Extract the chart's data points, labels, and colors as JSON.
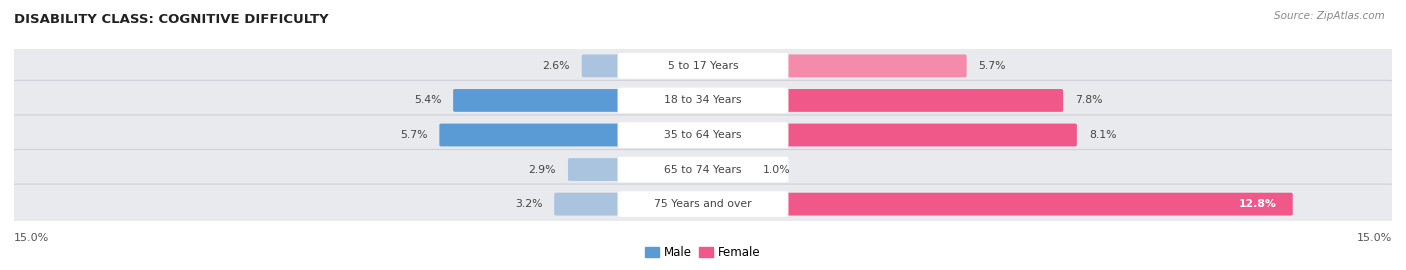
{
  "title": "DISABILITY CLASS: COGNITIVE DIFFICULTY",
  "source": "Source: ZipAtlas.com",
  "categories": [
    "5 to 17 Years",
    "18 to 34 Years",
    "35 to 64 Years",
    "65 to 74 Years",
    "75 Years and over"
  ],
  "male_values": [
    2.6,
    5.4,
    5.7,
    2.9,
    3.2
  ],
  "female_values": [
    5.7,
    7.8,
    8.1,
    1.0,
    12.8
  ],
  "male_colors": [
    "#aac4e0",
    "#5b9bd5",
    "#5b9bd5",
    "#aac4e0",
    "#aac4e0"
  ],
  "female_colors": [
    "#f48bab",
    "#f0588a",
    "#f0588a",
    "#f8b8cc",
    "#f0588a"
  ],
  "max_val": 15.0,
  "bg_color": "#ffffff",
  "row_bg_color": "#e8eaed",
  "row_border_color": "#d0d0d8",
  "center_label_bg": "#ffffff",
  "text_color": "#444444",
  "title_color": "#222222",
  "source_color": "#888888",
  "axis_label_color": "#555555"
}
